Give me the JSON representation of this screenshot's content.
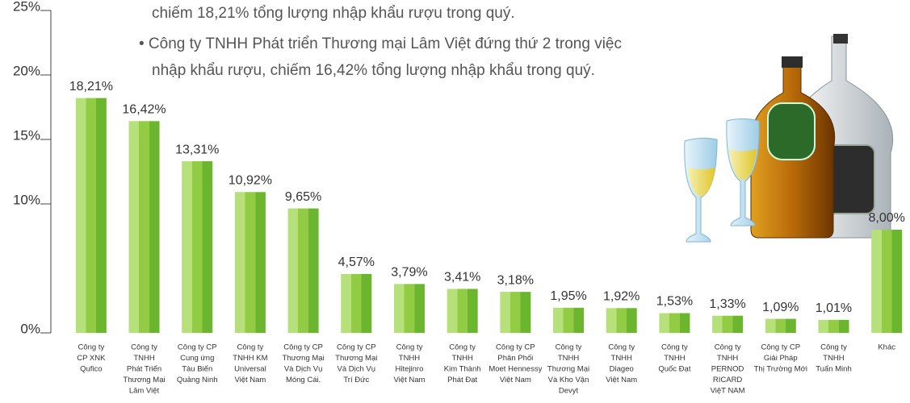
{
  "chart_data": {
    "type": "bar",
    "annotations": [
      "chiếm 18,21% tổng lượng nhập khẩu rượu trong quý.",
      "• Công ty TNHH Phát triển Thương mại Lâm Việt đứng thứ 2 trong việc",
      "nhập khẩu rượu, chiếm 16,42% tổng lượng nhập khẩu trong quý."
    ],
    "categories": [
      [
        "Công ty",
        "CP XNK",
        "Qufico"
      ],
      [
        "Công ty",
        "TNHH",
        "Phát Triển",
        "Thương Mại",
        "Lâm Việt"
      ],
      [
        "Công ty CP",
        "Cung ứng",
        "Tàu Biển",
        "Quảng Ninh"
      ],
      [
        "Công ty",
        "TNHH KM",
        "Universal",
        "Việt Nam"
      ],
      [
        "Công ty CP",
        "Thương Mại",
        "Và Dịch Vụ",
        "Móng Cái."
      ],
      [
        "Công ty CP",
        "Thương Mại",
        "Và Dịch Vụ",
        "Trí Đức"
      ],
      [
        "Công ty",
        "TNHH",
        "Hitejinro",
        "Việt Nam"
      ],
      [
        "Công ty",
        "TNHH",
        "Kim Thành",
        "Phát Đạt"
      ],
      [
        "Công ty CP",
        "Phân Phối",
        "Moet Hennessy",
        "Việt Nam"
      ],
      [
        "Công ty",
        "TNHH",
        "Thương Mại",
        "Và Kho Vận",
        "Devyt"
      ],
      [
        "Công ty",
        "TNHH",
        "Diageo",
        "Việt Nam"
      ],
      [
        "Công ty",
        "TNHH",
        "Quốc Đạt"
      ],
      [
        "Công ty",
        "TNHH",
        "PERNOD",
        "RICARD",
        "ViệT NAM"
      ],
      [
        "Công ty CP",
        "Giải Pháp",
        "Thị Trường Mới"
      ],
      [
        "Công ty",
        "TNHH",
        "Tuấn Minh"
      ],
      [
        "Khác"
      ]
    ],
    "values": [
      18.21,
      16.42,
      13.31,
      10.92,
      9.65,
      4.57,
      3.79,
      3.41,
      3.18,
      1.95,
      1.92,
      1.53,
      1.33,
      1.09,
      1.01,
      8.0
    ],
    "value_labels": [
      "18,21%",
      "16,42%",
      "13,31%",
      "10,92%",
      "9,65%",
      "4,57%",
      "3,79%",
      "3,41%",
      "3,18%",
      "1,95%",
      "1,92%",
      "1,53%",
      "1,33%",
      "1,09%",
      "1,01%",
      "8,00%"
    ],
    "colors": [
      "#b5e07a",
      "#92cc45",
      "#6cb52e"
    ],
    "ylim": [
      0,
      25
    ],
    "yticks": [
      {
        "value": 0,
        "label": "0%"
      },
      {
        "value": 10,
        "label": "10%"
      },
      {
        "value": 15,
        "label": "15%"
      },
      {
        "value": 20,
        "label": "20%"
      },
      {
        "value": 25,
        "label": "25%"
      }
    ]
  }
}
